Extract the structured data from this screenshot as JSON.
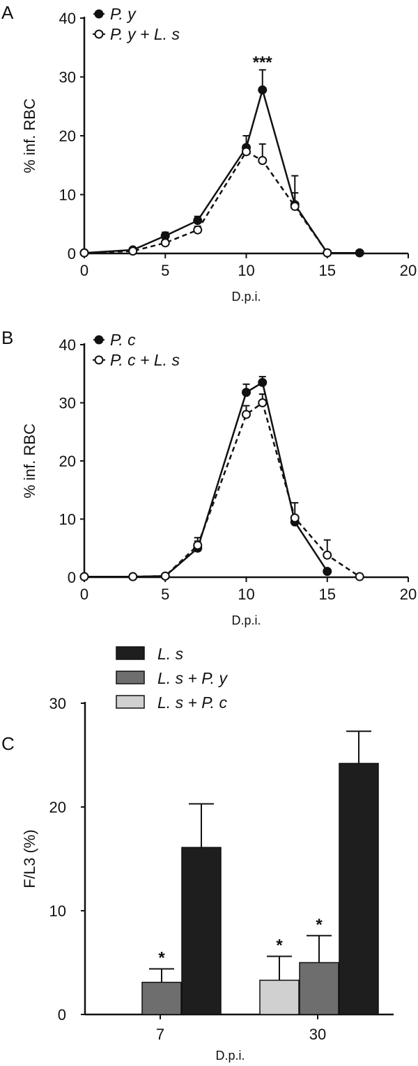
{
  "figure": {
    "panel_labels": [
      "A",
      "B",
      "C"
    ]
  },
  "chart_data": [
    {
      "type": "line",
      "panel": "A",
      "xlabel": "D.p.i.",
      "ylabel": "% inf. RBC",
      "xlim": [
        0,
        20
      ],
      "ylim": [
        0,
        40
      ],
      "xticks": [
        0,
        5,
        10,
        15,
        20
      ],
      "yticks": [
        0,
        10,
        20,
        30,
        40
      ],
      "legend_position": "top-left",
      "series": [
        {
          "name": "P. y",
          "marker": "filled",
          "line": "solid",
          "points": [
            {
              "x": 0,
              "y": 0.1,
              "err": 0
            },
            {
              "x": 3,
              "y": 0.6,
              "err": 0.3
            },
            {
              "x": 5,
              "y": 3.0,
              "err": 0.6
            },
            {
              "x": 7,
              "y": 5.6,
              "err": 0.7
            },
            {
              "x": 10,
              "y": 18.0,
              "err": 2.0
            },
            {
              "x": 11,
              "y": 27.8,
              "err": 3.4
            },
            {
              "x": 13,
              "y": 8.3,
              "err": 2.0
            },
            {
              "x": 15,
              "y": 0.1,
              "err": 0
            },
            {
              "x": 17,
              "y": 0.1,
              "err": 0
            }
          ]
        },
        {
          "name": "P. y + L. s",
          "marker": "open",
          "line": "dashed",
          "points": [
            {
              "x": 0,
              "y": 0.1,
              "err": 0
            },
            {
              "x": 3,
              "y": 0.4,
              "err": 0.3
            },
            {
              "x": 5,
              "y": 1.8,
              "err": 0.5
            },
            {
              "x": 7,
              "y": 4.0,
              "err": 0.6
            },
            {
              "x": 10,
              "y": 17.3,
              "err": 1.0
            },
            {
              "x": 11,
              "y": 15.8,
              "err": 2.8
            },
            {
              "x": 13,
              "y": 8.0,
              "err": 5.2
            },
            {
              "x": 15,
              "y": 0.1,
              "err": 0
            }
          ]
        }
      ],
      "annotations": [
        {
          "text": "***",
          "x": 11,
          "y": 32.5
        }
      ]
    },
    {
      "type": "line",
      "panel": "B",
      "xlabel": "D.p.i.",
      "ylabel": "% inf. RBC",
      "xlim": [
        0,
        20
      ],
      "ylim": [
        0,
        40
      ],
      "xticks": [
        0,
        5,
        10,
        15,
        20
      ],
      "yticks": [
        0,
        10,
        20,
        30,
        40
      ],
      "legend_position": "top-left",
      "series": [
        {
          "name": "P. c",
          "marker": "filled",
          "line": "solid",
          "points": [
            {
              "x": 0,
              "y": 0.1,
              "err": 0
            },
            {
              "x": 3,
              "y": 0.1,
              "err": 0
            },
            {
              "x": 5,
              "y": 0.2,
              "err": 0
            },
            {
              "x": 7,
              "y": 5.0,
              "err": 1.2
            },
            {
              "x": 10,
              "y": 31.8,
              "err": 1.4
            },
            {
              "x": 11,
              "y": 33.5,
              "err": 1.0
            },
            {
              "x": 13,
              "y": 9.5,
              "err": 1.0
            },
            {
              "x": 15,
              "y": 1.0,
              "err": 0
            }
          ]
        },
        {
          "name": "P. c + L. s",
          "marker": "open",
          "line": "dashed",
          "points": [
            {
              "x": 0,
              "y": 0.1,
              "err": 0
            },
            {
              "x": 3,
              "y": 0.1,
              "err": 0
            },
            {
              "x": 5,
              "y": 0.2,
              "err": 0
            },
            {
              "x": 7,
              "y": 5.5,
              "err": 1.3
            },
            {
              "x": 10,
              "y": 28.0,
              "err": 1.5
            },
            {
              "x": 11,
              "y": 30.0,
              "err": 1.5
            },
            {
              "x": 13,
              "y": 10.2,
              "err": 2.6
            },
            {
              "x": 15,
              "y": 3.8,
              "err": 2.6
            },
            {
              "x": 17,
              "y": 0.1,
              "err": 0
            }
          ]
        }
      ]
    },
    {
      "type": "bar",
      "panel": "C",
      "xlabel": "D.p.i.",
      "ylabel": "F/L3 (%)",
      "ylim": [
        0,
        30
      ],
      "yticks": [
        0,
        10,
        20,
        30
      ],
      "categories": [
        "7",
        "30"
      ],
      "legend_position": "top",
      "series": [
        {
          "name": "L. s + P. c",
          "color": "#d0d0d0",
          "values": [
            null,
            3.3
          ],
          "errors": [
            null,
            2.3
          ],
          "significance": [
            null,
            "*"
          ]
        },
        {
          "name": "L. s + P. y",
          "color": "#6e6e6e",
          "values": [
            3.1,
            5.0
          ],
          "errors": [
            1.3,
            2.6
          ],
          "significance": [
            "*",
            "*"
          ]
        },
        {
          "name": "L. s",
          "color": "#1e1e1e",
          "values": [
            16.1,
            24.2
          ],
          "errors": [
            4.2,
            3.1
          ],
          "significance": [
            null,
            null
          ]
        }
      ],
      "legend_order": [
        "L. s",
        "L. s + P. y",
        "L. s + P. c"
      ]
    }
  ]
}
